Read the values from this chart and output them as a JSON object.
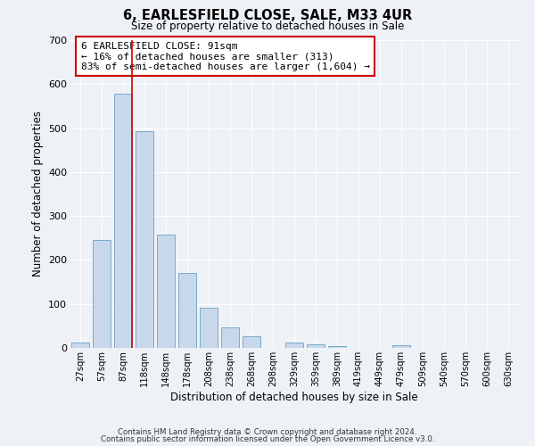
{
  "title": "6, EARLESFIELD CLOSE, SALE, M33 4UR",
  "subtitle": "Size of property relative to detached houses in Sale",
  "xlabel": "Distribution of detached houses by size in Sale",
  "ylabel": "Number of detached properties",
  "bar_color": "#c8d8ea",
  "bar_edge_color": "#7baac8",
  "background_color": "#eef2f7",
  "grid_color": "#ffffff",
  "categories": [
    "27sqm",
    "57sqm",
    "87sqm",
    "118sqm",
    "148sqm",
    "178sqm",
    "208sqm",
    "238sqm",
    "268sqm",
    "298sqm",
    "329sqm",
    "359sqm",
    "389sqm",
    "419sqm",
    "449sqm",
    "479sqm",
    "509sqm",
    "540sqm",
    "570sqm",
    "600sqm",
    "630sqm"
  ],
  "values": [
    12,
    245,
    578,
    493,
    258,
    170,
    92,
    47,
    27,
    0,
    12,
    8,
    5,
    0,
    0,
    6,
    0,
    0,
    0,
    0,
    0
  ],
  "vline_x_index": 2,
  "vline_color": "#cc0000",
  "annotation_text": "6 EARLESFIELD CLOSE: 91sqm\n← 16% of detached houses are smaller (313)\n83% of semi-detached houses are larger (1,604) →",
  "annotation_box_color": "#ffffff",
  "annotation_box_edge_color": "#cc0000",
  "ylim": [
    0,
    700
  ],
  "yticks": [
    0,
    100,
    200,
    300,
    400,
    500,
    600,
    700
  ],
  "footer1": "Contains HM Land Registry data © Crown copyright and database right 2024.",
  "footer2": "Contains public sector information licensed under the Open Government Licence v3.0."
}
